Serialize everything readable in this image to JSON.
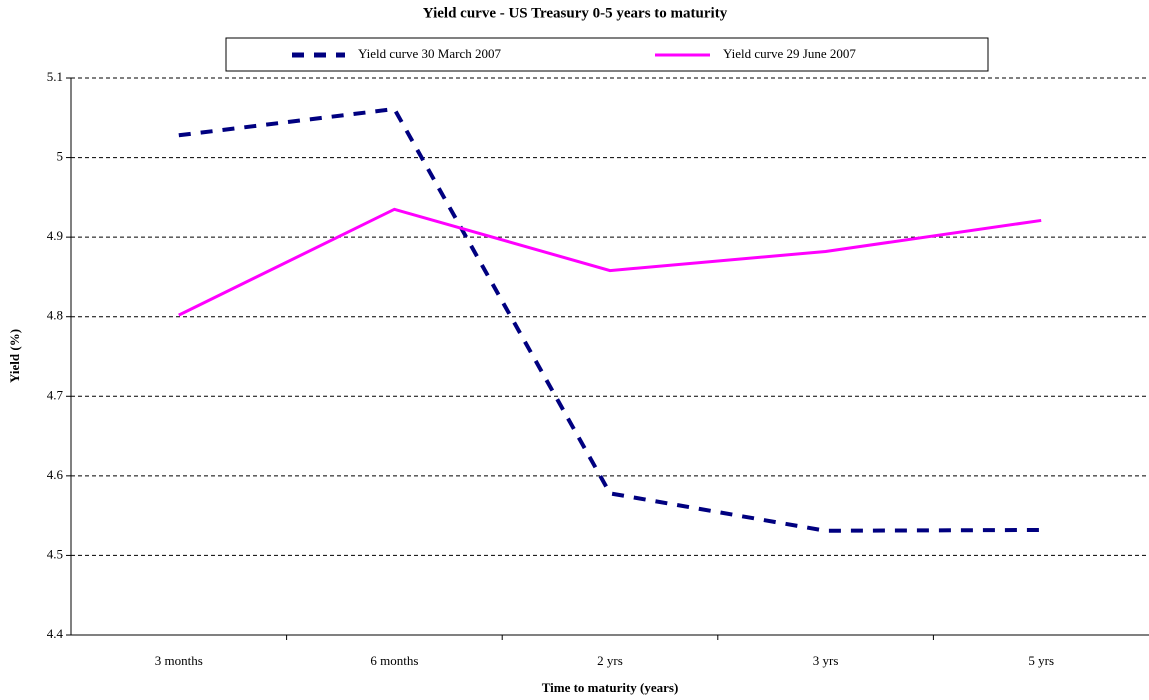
{
  "chart_data": {
    "type": "line",
    "title": "Yield curve - US Treasury 0-5 years to maturity",
    "x_label": "Time to maturity (years)",
    "y_label": "Yield (%)",
    "categories": [
      "3 months",
      "6 months",
      "2 yrs",
      "3 yrs",
      "5 yrs"
    ],
    "series": [
      {
        "name": "Yield curve 30 March 2007",
        "color": "#000080",
        "dash": true,
        "values": [
          5.028,
          5.061,
          4.578,
          4.531,
          4.532
        ]
      },
      {
        "name": "Yield curve 29 June 2007",
        "color": "#ff00ff",
        "dash": false,
        "values": [
          4.802,
          4.935,
          4.858,
          4.882,
          4.921
        ]
      }
    ],
    "ylim": [
      4.4,
      5.1
    ],
    "yticks": [
      4.4,
      4.5,
      4.6,
      4.7,
      4.8,
      4.9,
      5,
      5.1
    ],
    "grid": true,
    "legend": "top"
  }
}
